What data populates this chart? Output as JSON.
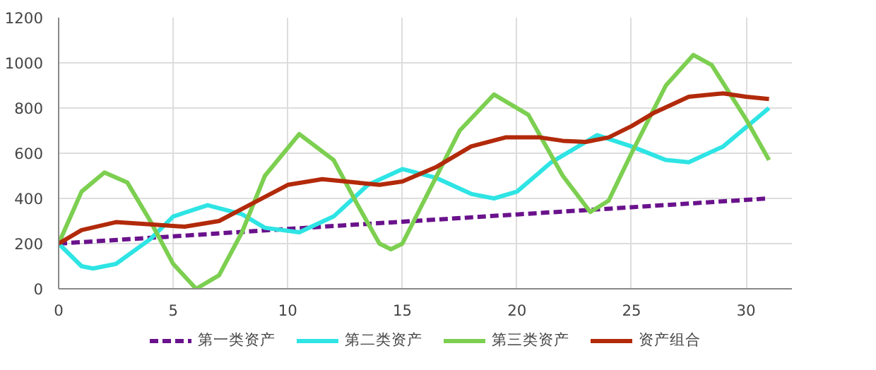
{
  "chart_data": {
    "type": "line",
    "xlim": [
      0,
      32
    ],
    "xticks": [
      0,
      5,
      10,
      15,
      20,
      25,
      30
    ],
    "ylim": [
      0,
      1200
    ],
    "yticks": [
      0,
      200,
      400,
      600,
      800,
      1000,
      1200
    ],
    "grid": true,
    "legend": "bottom",
    "marker": "none",
    "series": [
      {
        "name": "第一类资产",
        "color": "#6a128c",
        "line_style": "dashed",
        "x": [
          0,
          5,
          10,
          15,
          20,
          25,
          31
        ],
        "values": [
          200,
          232,
          265,
          297,
          329,
          361,
          400
        ]
      },
      {
        "name": "第二类资产",
        "color": "#2ee4e4",
        "line_style": "solid",
        "x": [
          0,
          1,
          1.5,
          2.5,
          4,
          5,
          6.5,
          8,
          9,
          10.5,
          12,
          13.5,
          15,
          16.5,
          18,
          19,
          20,
          21.5,
          23.5,
          25,
          26.5,
          27.5,
          29,
          31
        ],
        "values": [
          200,
          100,
          90,
          110,
          220,
          320,
          370,
          330,
          270,
          250,
          320,
          460,
          530,
          490,
          420,
          400,
          430,
          560,
          680,
          630,
          570,
          560,
          630,
          800
        ]
      },
      {
        "name": "第三类资产",
        "color": "#7ccf50",
        "line_style": "solid",
        "x": [
          0,
          1,
          2,
          3,
          4,
          5,
          6,
          7,
          8,
          9,
          10.5,
          12,
          13,
          14,
          14.5,
          15,
          16,
          17.5,
          19,
          20.5,
          22,
          23.2,
          24,
          25,
          26.5,
          27.7,
          28.5,
          30,
          31
        ],
        "values": [
          200,
          430,
          515,
          470,
          300,
          110,
          0,
          60,
          250,
          500,
          685,
          570,
          380,
          200,
          175,
          200,
          400,
          700,
          860,
          770,
          500,
          340,
          390,
          600,
          900,
          1035,
          990,
          750,
          570
        ]
      },
      {
        "name": "资产组合",
        "color": "#b22a0a",
        "line_style": "solid",
        "x": [
          0,
          1,
          2.5,
          4,
          5.5,
          7,
          8.5,
          10,
          11.5,
          13,
          14,
          15,
          16.5,
          18,
          19.5,
          21,
          22,
          23,
          24,
          25,
          26,
          27.5,
          29,
          30,
          31
        ],
        "values": [
          200,
          260,
          295,
          285,
          275,
          300,
          380,
          460,
          485,
          470,
          460,
          475,
          540,
          630,
          670,
          670,
          655,
          650,
          670,
          720,
          780,
          850,
          865,
          850,
          840
        ]
      }
    ]
  }
}
